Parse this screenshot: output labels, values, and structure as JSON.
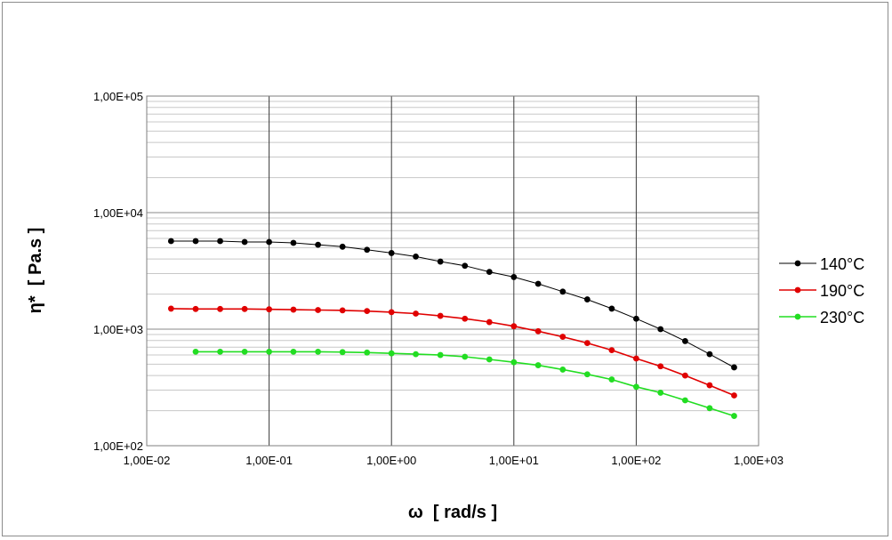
{
  "chart_data": {
    "type": "line",
    "title": "",
    "xlabel": "ω  [ rad/s ]",
    "ylabel": "η*  [ Pa.s ]",
    "xscale": "log",
    "yscale": "log",
    "xlim": [
      0.01,
      1000
    ],
    "ylim": [
      100,
      100000
    ],
    "grid": "major and minor",
    "legend_position": "right",
    "x_tick_labels": [
      "1,00E-02",
      "1,00E-01",
      "1,00E+00",
      "1,00E+01",
      "1,00E+02",
      "1,00E+03"
    ],
    "y_tick_labels": [
      "1,00E+02",
      "1,00E+03",
      "1,00E+04",
      "1,00E+05"
    ],
    "series": [
      {
        "name": "140°C",
        "color": "#000000",
        "x": [
          0.0158,
          0.0251,
          0.0398,
          0.0631,
          0.1,
          0.158,
          0.251,
          0.398,
          0.631,
          1.0,
          1.58,
          2.51,
          3.98,
          6.31,
          10.0,
          15.8,
          25.1,
          39.8,
          63.1,
          100,
          158,
          251,
          398,
          631
        ],
        "y": [
          5700,
          5700,
          5700,
          5600,
          5600,
          5500,
          5300,
          5100,
          4800,
          4500,
          4200,
          3800,
          3500,
          3100,
          2800,
          2450,
          2100,
          1800,
          1500,
          1230,
          1000,
          790,
          610,
          470
        ]
      },
      {
        "name": "190°C",
        "color": "#e00000",
        "x": [
          0.0158,
          0.0251,
          0.0398,
          0.0631,
          0.1,
          0.158,
          0.251,
          0.398,
          0.631,
          1.0,
          1.58,
          2.51,
          3.98,
          6.31,
          10.0,
          15.8,
          25.1,
          39.8,
          63.1,
          100,
          158,
          251,
          398,
          631
        ],
        "y": [
          1500,
          1490,
          1490,
          1490,
          1480,
          1470,
          1460,
          1450,
          1430,
          1400,
          1360,
          1300,
          1230,
          1150,
          1060,
          960,
          860,
          760,
          660,
          560,
          480,
          400,
          330,
          270
        ]
      },
      {
        "name": "230°C",
        "color": "#22dd22",
        "x": [
          0.0251,
          0.0398,
          0.0631,
          0.1,
          0.158,
          0.251,
          0.398,
          0.631,
          1.0,
          1.58,
          2.51,
          3.98,
          6.31,
          10.0,
          15.8,
          25.1,
          39.8,
          63.1,
          100,
          158,
          251,
          398,
          631
        ],
        "y": [
          640,
          640,
          640,
          640,
          640,
          640,
          635,
          630,
          620,
          610,
          600,
          580,
          550,
          520,
          490,
          450,
          410,
          370,
          320,
          285,
          245,
          210,
          180
        ]
      }
    ]
  }
}
